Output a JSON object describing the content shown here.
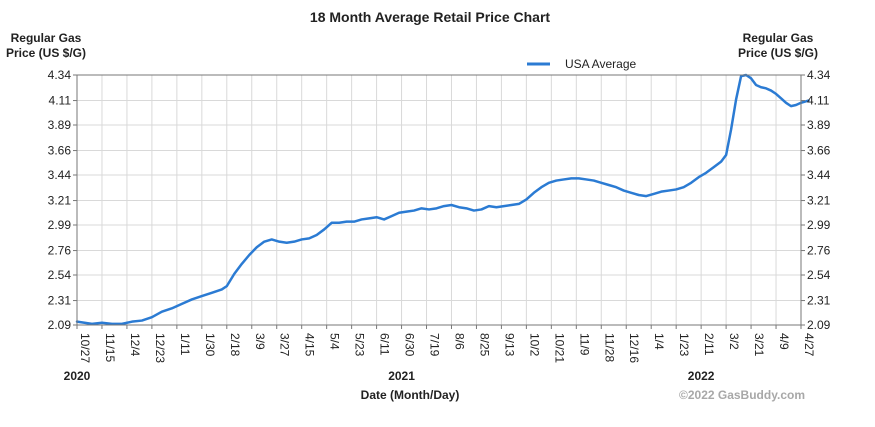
{
  "chart_data": {
    "type": "line",
    "title": "18 Month Average Retail Price Chart",
    "y_axis_label_left": [
      "Regular Gas",
      "Price (US $/G)"
    ],
    "y_axis_label_right": [
      "Regular Gas",
      "Price (US $/G)"
    ],
    "xlabel": "Date (Month/Day)",
    "ylim": [
      2.09,
      4.34
    ],
    "y_ticks": [
      "2.09",
      "2.31",
      "2.54",
      "2.76",
      "2.99",
      "3.21",
      "3.44",
      "3.66",
      "3.89",
      "4.11",
      "4.34"
    ],
    "x_ticks": [
      "10/27",
      "11/15",
      "12/4",
      "12/23",
      "1/11",
      "1/30",
      "2/18",
      "3/9",
      "3/27",
      "4/15",
      "5/4",
      "5/23",
      "6/11",
      "6/30",
      "7/19",
      "8/6",
      "8/25",
      "9/13",
      "10/2",
      "10/21",
      "11/9",
      "11/28",
      "12/16",
      "1/4",
      "1/23",
      "2/11",
      "3/2",
      "3/21",
      "4/9",
      "4/27"
    ],
    "year_labels": [
      {
        "label": "2020",
        "tick": "10/27"
      },
      {
        "label": "2021",
        "tick": "6/30"
      },
      {
        "label": "2022",
        "tick": "2/11"
      }
    ],
    "grid": true,
    "legend_position": "top-right",
    "series": [
      {
        "name": "USA Average",
        "color": "#2b7bd3",
        "points": [
          [
            0.0,
            2.12
          ],
          [
            0.3,
            2.11
          ],
          [
            0.6,
            2.1
          ],
          [
            1.0,
            2.11
          ],
          [
            1.4,
            2.1
          ],
          [
            1.8,
            2.1
          ],
          [
            2.2,
            2.12
          ],
          [
            2.6,
            2.13
          ],
          [
            3.0,
            2.16
          ],
          [
            3.4,
            2.21
          ],
          [
            3.8,
            2.24
          ],
          [
            4.2,
            2.28
          ],
          [
            4.6,
            2.32
          ],
          [
            5.0,
            2.35
          ],
          [
            5.4,
            2.38
          ],
          [
            5.8,
            2.41
          ],
          [
            6.0,
            2.44
          ],
          [
            6.3,
            2.55
          ],
          [
            6.6,
            2.64
          ],
          [
            6.9,
            2.72
          ],
          [
            7.2,
            2.79
          ],
          [
            7.5,
            2.84
          ],
          [
            7.8,
            2.86
          ],
          [
            8.1,
            2.84
          ],
          [
            8.4,
            2.83
          ],
          [
            8.7,
            2.84
          ],
          [
            9.0,
            2.86
          ],
          [
            9.3,
            2.87
          ],
          [
            9.6,
            2.9
          ],
          [
            9.9,
            2.95
          ],
          [
            10.2,
            3.01
          ],
          [
            10.5,
            3.01
          ],
          [
            10.8,
            3.02
          ],
          [
            11.1,
            3.02
          ],
          [
            11.4,
            3.04
          ],
          [
            11.7,
            3.05
          ],
          [
            12.0,
            3.06
          ],
          [
            12.3,
            3.04
          ],
          [
            12.6,
            3.07
          ],
          [
            12.9,
            3.1
          ],
          [
            13.2,
            3.11
          ],
          [
            13.5,
            3.12
          ],
          [
            13.8,
            3.14
          ],
          [
            14.1,
            3.13
          ],
          [
            14.4,
            3.14
          ],
          [
            14.7,
            3.16
          ],
          [
            15.0,
            3.17
          ],
          [
            15.3,
            3.15
          ],
          [
            15.6,
            3.14
          ],
          [
            15.9,
            3.12
          ],
          [
            16.2,
            3.13
          ],
          [
            16.5,
            3.16
          ],
          [
            16.8,
            3.15
          ],
          [
            17.1,
            3.16
          ],
          [
            17.4,
            3.17
          ],
          [
            17.7,
            3.18
          ],
          [
            18.0,
            3.22
          ],
          [
            18.3,
            3.28
          ],
          [
            18.6,
            3.33
          ],
          [
            18.9,
            3.37
          ],
          [
            19.2,
            3.39
          ],
          [
            19.5,
            3.4
          ],
          [
            19.8,
            3.41
          ],
          [
            20.1,
            3.41
          ],
          [
            20.4,
            3.4
          ],
          [
            20.7,
            3.39
          ],
          [
            21.0,
            3.37
          ],
          [
            21.3,
            3.35
          ],
          [
            21.6,
            3.33
          ],
          [
            21.9,
            3.3
          ],
          [
            22.2,
            3.28
          ],
          [
            22.5,
            3.26
          ],
          [
            22.8,
            3.25
          ],
          [
            23.1,
            3.27
          ],
          [
            23.4,
            3.29
          ],
          [
            23.7,
            3.3
          ],
          [
            24.0,
            3.31
          ],
          [
            24.3,
            3.33
          ],
          [
            24.6,
            3.37
          ],
          [
            24.9,
            3.42
          ],
          [
            25.2,
            3.46
          ],
          [
            25.5,
            3.51
          ],
          [
            25.8,
            3.56
          ],
          [
            26.0,
            3.62
          ],
          [
            26.2,
            3.85
          ],
          [
            26.4,
            4.12
          ],
          [
            26.6,
            4.33
          ],
          [
            26.8,
            4.34
          ],
          [
            27.0,
            4.31
          ],
          [
            27.2,
            4.25
          ],
          [
            27.4,
            4.23
          ],
          [
            27.6,
            4.22
          ],
          [
            27.8,
            4.2
          ],
          [
            28.0,
            4.17
          ],
          [
            28.2,
            4.13
          ],
          [
            28.4,
            4.09
          ],
          [
            28.6,
            4.06
          ],
          [
            28.8,
            4.07
          ],
          [
            29.0,
            4.09
          ],
          [
            29.3,
            4.11
          ]
        ]
      }
    ],
    "watermark": "©2022 GasBuddy.com"
  }
}
